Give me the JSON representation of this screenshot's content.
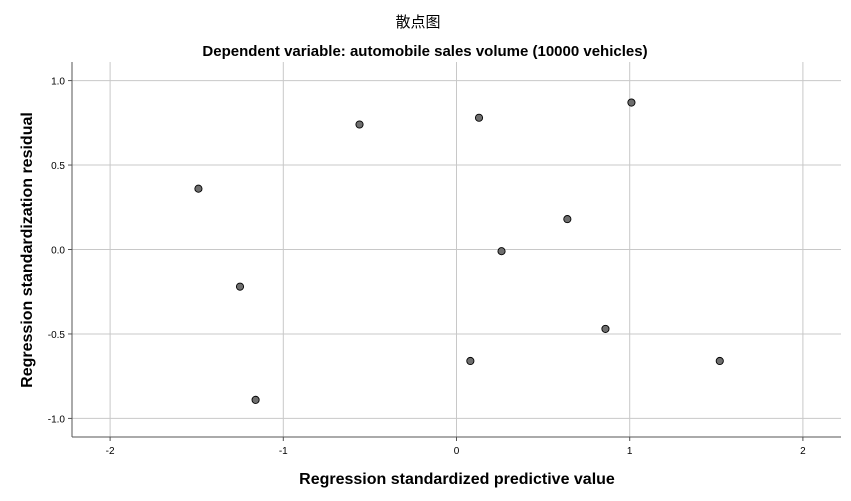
{
  "chart_data": {
    "type": "scatter",
    "title": "散点图",
    "subtitle": "Dependent variable: automobile sales volume (10000 vehicles)",
    "xlabel": "Regression standardized predictive value",
    "ylabel": "Regression standardization residual",
    "xlim": [
      -2.22,
      2.22
    ],
    "ylim": [
      -1.11,
      1.11
    ],
    "x_ticks": [
      -2,
      -1,
      0,
      1,
      2
    ],
    "y_ticks": [
      1.0,
      0.5,
      0.0,
      -0.5,
      -1.0
    ],
    "x_tick_labels": [
      "-2",
      "-1",
      "0",
      "1",
      "2"
    ],
    "y_tick_labels": [
      "1.0",
      "0.5",
      "0.0",
      "-0.5",
      "-1.0"
    ],
    "grid": true,
    "series": [
      {
        "points": [
          {
            "x": -1.49,
            "y": 0.36
          },
          {
            "x": -1.25,
            "y": -0.22
          },
          {
            "x": -1.16,
            "y": -0.89
          },
          {
            "x": -0.56,
            "y": 0.74
          },
          {
            "x": 0.08,
            "y": -0.66
          },
          {
            "x": 0.13,
            "y": 0.78
          },
          {
            "x": 0.26,
            "y": -0.01
          },
          {
            "x": 0.64,
            "y": 0.18
          },
          {
            "x": 0.86,
            "y": -0.47
          },
          {
            "x": 1.01,
            "y": 0.87
          },
          {
            "x": 1.52,
            "y": -0.66
          }
        ]
      }
    ],
    "colors": {
      "point_fill": "#6e6e6e",
      "point_stroke": "#000000",
      "grid": "#c8c8c8",
      "axis": "#555555"
    }
  }
}
